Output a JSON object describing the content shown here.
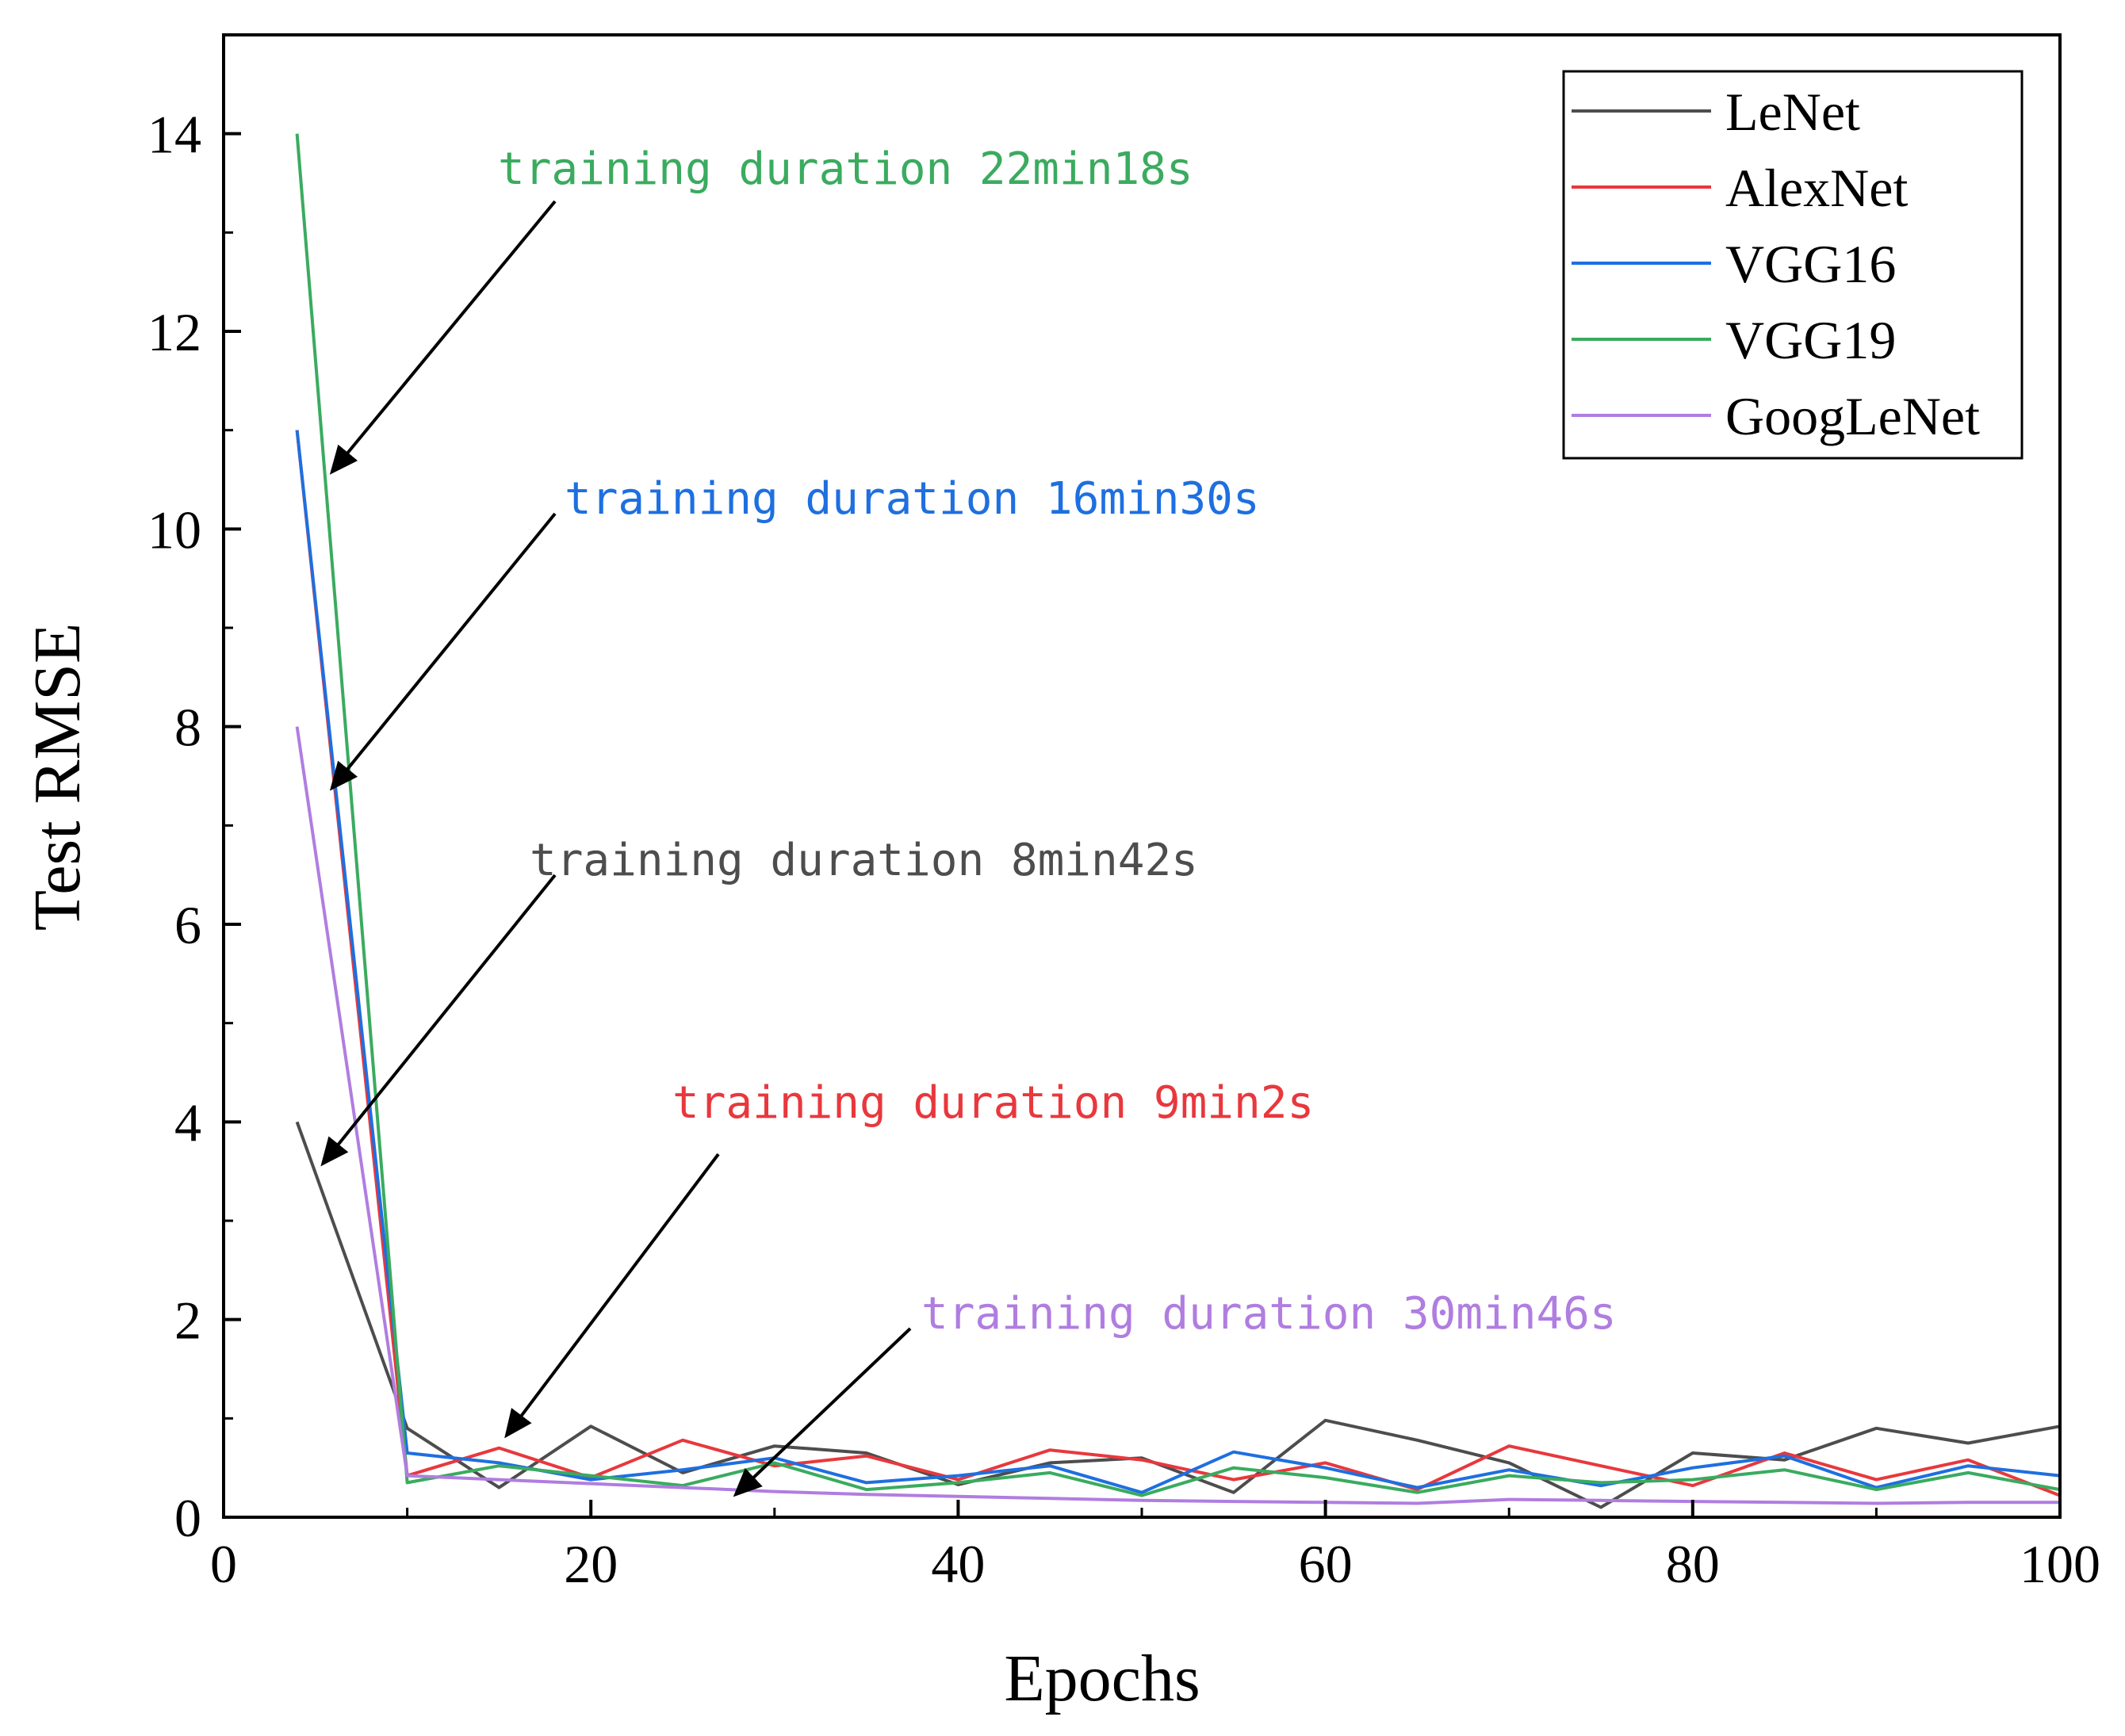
{
  "chart_data": {
    "type": "line",
    "title": "",
    "xlabel": "Epochs",
    "ylabel": "Test RMSE",
    "xlim": [
      0,
      100
    ],
    "ylim": [
      0,
      15
    ],
    "xticks": [
      0,
      20,
      40,
      60,
      80,
      100
    ],
    "yticks": [
      0,
      2,
      4,
      6,
      8,
      10,
      12,
      14
    ],
    "grid": false,
    "legend_position": "top-right",
    "x": [
      4,
      10,
      15,
      20,
      25,
      30,
      35,
      40,
      45,
      50,
      55,
      60,
      65,
      70,
      75,
      80,
      85,
      90,
      95,
      100
    ],
    "series": [
      {
        "name": "LeNet",
        "color": "#4d4d4d",
        "values": [
          4.0,
          0.9,
          0.3,
          0.92,
          0.45,
          0.72,
          0.65,
          0.33,
          0.55,
          0.6,
          0.25,
          0.98,
          0.78,
          0.55,
          0.1,
          0.65,
          0.58,
          0.9,
          0.75,
          0.92
        ]
      },
      {
        "name": "AlexNet",
        "color": "#e8383d",
        "values": [
          11.0,
          0.42,
          0.7,
          0.4,
          0.78,
          0.52,
          0.62,
          0.38,
          0.68,
          0.58,
          0.38,
          0.55,
          0.28,
          0.72,
          0.52,
          0.32,
          0.65,
          0.38,
          0.58,
          0.22
        ]
      },
      {
        "name": "VGG16",
        "color": "#1e6fe0",
        "values": [
          11.0,
          0.65,
          0.55,
          0.38,
          0.48,
          0.6,
          0.35,
          0.42,
          0.52,
          0.25,
          0.66,
          0.5,
          0.3,
          0.48,
          0.32,
          0.5,
          0.62,
          0.3,
          0.52,
          0.42
        ]
      },
      {
        "name": "VGG19",
        "color": "#3aab5f",
        "values": [
          14.0,
          0.35,
          0.52,
          0.42,
          0.32,
          0.55,
          0.28,
          0.35,
          0.45,
          0.22,
          0.5,
          0.4,
          0.25,
          0.42,
          0.35,
          0.38,
          0.48,
          0.28,
          0.45,
          0.28
        ]
      },
      {
        "name": "GoogLeNet",
        "color": "#b07de0",
        "values": [
          8.0,
          0.42,
          0.38,
          0.34,
          0.3,
          0.26,
          0.23,
          0.21,
          0.19,
          0.17,
          0.16,
          0.15,
          0.14,
          0.18,
          0.17,
          0.16,
          0.15,
          0.14,
          0.15,
          0.15
        ]
      }
    ],
    "annotations": [
      {
        "text": "training duration 22min18s",
        "color": "#3aab5f",
        "arrow_to": [
          6,
          10.6
        ]
      },
      {
        "text": "training duration 16min30s",
        "color": "#1e6fe0",
        "arrow_to": [
          6,
          7.4
        ]
      },
      {
        "text": "training duration 8min42s",
        "color": "#4d4d4d",
        "arrow_to": [
          5.5,
          3.6
        ]
      },
      {
        "text": "training duration 9min2s",
        "color": "#e8383d",
        "arrow_to": [
          15.5,
          0.85
        ]
      },
      {
        "text": "training duration 30min46s",
        "color": "#b07de0",
        "arrow_to": [
          28,
          0.25
        ]
      }
    ]
  }
}
